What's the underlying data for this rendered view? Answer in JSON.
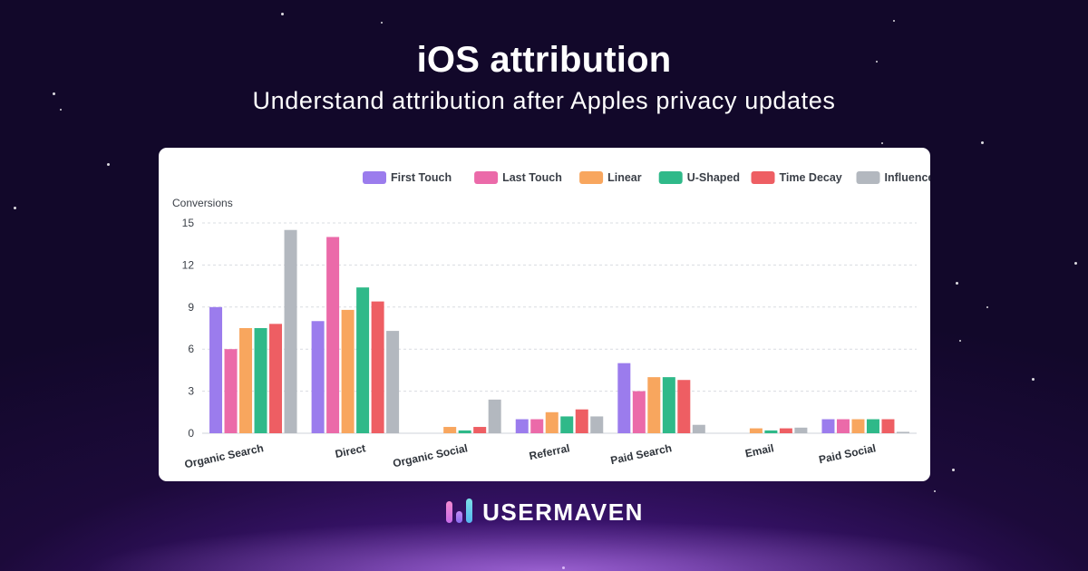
{
  "header": {
    "title": "iOS attribution",
    "subtitle": "Understand attribution after Apples privacy updates"
  },
  "brand": {
    "name": "USERMAVEN",
    "logo_icon": "usermaven-bars-icon"
  },
  "colors": {
    "background": "#1c0a3a",
    "card": "#ffffff",
    "First Touch": "#9b7ced",
    "Last Touch": "#eb6aa9",
    "Linear": "#f8a65e",
    "U-Shaped": "#2fb989",
    "Time Decay": "#ee5e63",
    "Influenced": "#b3b8bf"
  },
  "chart_data": {
    "type": "bar",
    "ylabel": "Conversions",
    "xlabel": "",
    "ylim": [
      0,
      15
    ],
    "yticks": [
      0,
      3,
      6,
      9,
      12,
      15
    ],
    "grid": true,
    "legend_position": "top-right",
    "categories": [
      "Organic Search",
      "Direct",
      "Organic Social",
      "Referral",
      "Paid Search",
      "Email",
      "Paid Social"
    ],
    "series": [
      {
        "name": "First Touch",
        "values": [
          9.0,
          8.0,
          0,
          1.0,
          5.0,
          0,
          1.0
        ]
      },
      {
        "name": "Last Touch",
        "values": [
          6.0,
          14.0,
          0,
          1.0,
          3.0,
          0,
          1.0
        ]
      },
      {
        "name": "Linear",
        "values": [
          7.5,
          8.8,
          0.45,
          1.5,
          4.0,
          0.35,
          1.0
        ]
      },
      {
        "name": "U-Shaped",
        "values": [
          7.5,
          10.4,
          0.2,
          1.2,
          4.0,
          0.2,
          1.0
        ]
      },
      {
        "name": "Time Decay",
        "values": [
          7.8,
          9.4,
          0.45,
          1.7,
          3.8,
          0.35,
          1.0
        ]
      },
      {
        "name": "Influenced",
        "values": [
          14.5,
          7.3,
          2.4,
          1.2,
          0.6,
          0.4,
          0.1
        ]
      }
    ]
  }
}
